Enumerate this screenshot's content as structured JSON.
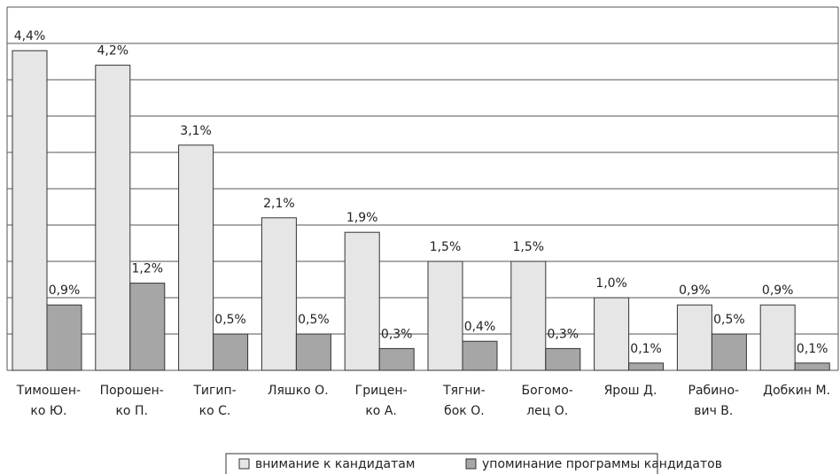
{
  "chart_data": {
    "type": "bar",
    "categories": [
      [
        "Тимошен-",
        "ко Ю."
      ],
      [
        "Порошен-",
        "ко П."
      ],
      [
        "Тигип-",
        "ко С."
      ],
      [
        "Ляшко О."
      ],
      [
        "Грицен-",
        "ко А."
      ],
      [
        "Тягни-",
        "бок О."
      ],
      [
        "Богомо-",
        "лец О."
      ],
      [
        "Ярош Д."
      ],
      [
        "Рабино-",
        "вич В."
      ],
      [
        "Добкин М."
      ]
    ],
    "series": [
      {
        "name": "внимание к кандидатам",
        "color": "#e6e6e6",
        "values": [
          4.4,
          4.2,
          3.1,
          2.1,
          1.9,
          1.5,
          1.5,
          1.0,
          0.9,
          0.9
        ],
        "value_labels": [
          "4,4%",
          "4,2%",
          "3,1%",
          "2,1%",
          "1,9%",
          "1,5%",
          "1,5%",
          "1,0%",
          "0,9%",
          "0,9%"
        ]
      },
      {
        "name": "упоминание программы кандидатов",
        "color": "#a6a6a6",
        "values": [
          0.9,
          1.2,
          0.5,
          0.5,
          0.3,
          0.4,
          0.3,
          0.1,
          0.5,
          0.1
        ],
        "value_labels": [
          "0,9%",
          "1,2%",
          "0,5%",
          "0,5%",
          "0,3%",
          "0,4%",
          "0,3%",
          "0,1%",
          "0,5%",
          "0,1%"
        ]
      }
    ],
    "ylim": [
      0,
      5
    ],
    "yticks": [
      0,
      0.5,
      1,
      1.5,
      2,
      2.5,
      3,
      3.5,
      4,
      4.5,
      5
    ],
    "grid": true,
    "legend": "bottom"
  }
}
